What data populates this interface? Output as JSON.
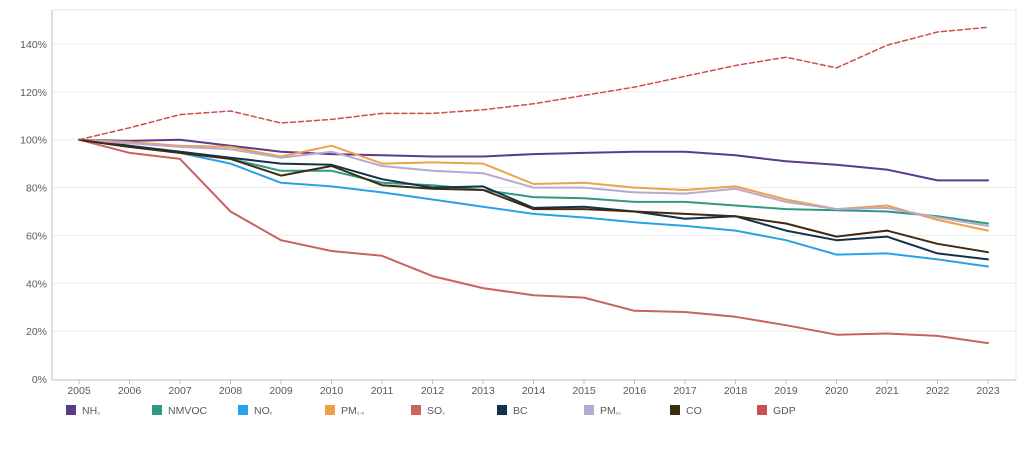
{
  "chart_data": {
    "type": "line",
    "title": "",
    "xlabel": "",
    "ylabel": "",
    "x": [
      2005,
      2006,
      2007,
      2008,
      2009,
      2010,
      2011,
      2012,
      2013,
      2014,
      2015,
      2016,
      2017,
      2018,
      2019,
      2020,
      2021,
      2022,
      2023
    ],
    "ylim": [
      0,
      150
    ],
    "y_ticks": [
      0,
      20,
      40,
      60,
      80,
      100,
      120,
      140
    ],
    "y_tick_labels": [
      "0%",
      "20%",
      "40%",
      "60%",
      "80%",
      "100%",
      "120%",
      "140%"
    ],
    "grid": true,
    "legend_position": "bottom",
    "series": [
      {
        "key": "nh3",
        "name": "NH₃",
        "color": "#5b3a8c",
        "dashed": false,
        "values": [
          100,
          99.5,
          100,
          97.5,
          95,
          94,
          93.5,
          93,
          93,
          94,
          94.5,
          95,
          95,
          93.5,
          91,
          89.5,
          87.5,
          83,
          83
        ]
      },
      {
        "key": "nmvoc",
        "name": "NMVOC",
        "color": "#2e9a82",
        "dashed": false,
        "values": [
          100,
          97,
          95,
          92,
          87,
          87,
          82,
          81,
          79,
          76,
          75.5,
          74,
          74,
          72.5,
          71,
          70.5,
          70,
          68,
          65
        ]
      },
      {
        "key": "nox",
        "name": "NOₓ",
        "color": "#26a3e6",
        "dashed": false,
        "values": [
          100,
          97,
          94.5,
          90,
          82,
          80.5,
          78,
          75,
          72,
          69,
          67.5,
          65.5,
          64,
          62,
          58,
          52,
          52.5,
          50,
          47
        ]
      },
      {
        "key": "pm25",
        "name": "PM₂.₅",
        "color": "#f0a04b",
        "dashed": false,
        "values": [
          100,
          99,
          97.5,
          97,
          93,
          97.5,
          90,
          90.5,
          90,
          81.5,
          82,
          80,
          79,
          80.5,
          75,
          71,
          72.5,
          66.5,
          62
        ]
      },
      {
        "key": "so2",
        "name": "SO₂",
        "color": "#c9635f",
        "dashed": false,
        "values": [
          100,
          94.5,
          92,
          70,
          58,
          53.5,
          51.5,
          43,
          38,
          35,
          34,
          28.5,
          28,
          26,
          22.5,
          18.5,
          19,
          18,
          15
        ]
      },
      {
        "key": "bc",
        "name": "BC",
        "color": "#13324a",
        "dashed": false,
        "values": [
          100,
          97.5,
          95,
          92.5,
          90,
          89.5,
          83.5,
          80,
          80.5,
          71.5,
          72,
          70,
          67,
          68,
          62,
          58,
          59.5,
          52.5,
          50
        ]
      },
      {
        "key": "pm10",
        "name": "PM₁₀",
        "color": "#b8a9cf",
        "dashed": false,
        "values": [
          100,
          98.5,
          97,
          96,
          92.5,
          95,
          89,
          87,
          86,
          80,
          80,
          78,
          77.5,
          79.5,
          74,
          71,
          71.5,
          67.5,
          64
        ]
      },
      {
        "key": "co",
        "name": "CO",
        "color": "#3f2a12",
        "dashed": false,
        "values": [
          100,
          97,
          94.5,
          92,
          85,
          89,
          81,
          79.5,
          79,
          71,
          71,
          70,
          69,
          68,
          65,
          59.5,
          62,
          56.5,
          53
        ]
      },
      {
        "key": "gdp",
        "name": "GDP",
        "color": "#c8504e",
        "dashed": true,
        "values": [
          100,
          105,
          110.5,
          112,
          107,
          108.5,
          111,
          111,
          112.5,
          115,
          118.5,
          122,
          126.5,
          131,
          134.5,
          130,
          139.5,
          145,
          147
        ]
      }
    ]
  }
}
